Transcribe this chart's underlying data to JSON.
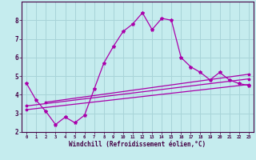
{
  "xlabel": "Windchill (Refroidissement éolien,°C)",
  "background_color": "#c5ecee",
  "grid_color": "#a8d4d8",
  "line_color": "#aa00aa",
  "wiggly_x": [
    0,
    1,
    2,
    3,
    4,
    5,
    6,
    7,
    8,
    9,
    10,
    11,
    12,
    13,
    14,
    15,
    16,
    17,
    18,
    19,
    20,
    21,
    22,
    23
  ],
  "wiggly_y": [
    4.6,
    3.7,
    3.1,
    2.4,
    2.8,
    2.5,
    2.9,
    4.3,
    5.7,
    6.6,
    7.4,
    7.8,
    8.4,
    7.5,
    8.1,
    8.0,
    6.0,
    5.5,
    5.2,
    4.8,
    5.2,
    4.8,
    4.6,
    4.5
  ],
  "line1_x": [
    0,
    23
  ],
  "line1_y": [
    3.2,
    4.55
  ],
  "line2_x": [
    0,
    23
  ],
  "line2_y": [
    3.4,
    4.85
  ],
  "line3_x": [
    2,
    23
  ],
  "line3_y": [
    3.6,
    5.1
  ],
  "ylim": [
    2.0,
    9.0
  ],
  "xlim": [
    -0.5,
    23.5
  ],
  "yticks": [
    2,
    3,
    4,
    5,
    6,
    7,
    8
  ],
  "xticks": [
    0,
    1,
    2,
    3,
    4,
    5,
    6,
    7,
    8,
    9,
    10,
    11,
    12,
    13,
    14,
    15,
    16,
    17,
    18,
    19,
    20,
    21,
    22,
    23
  ]
}
